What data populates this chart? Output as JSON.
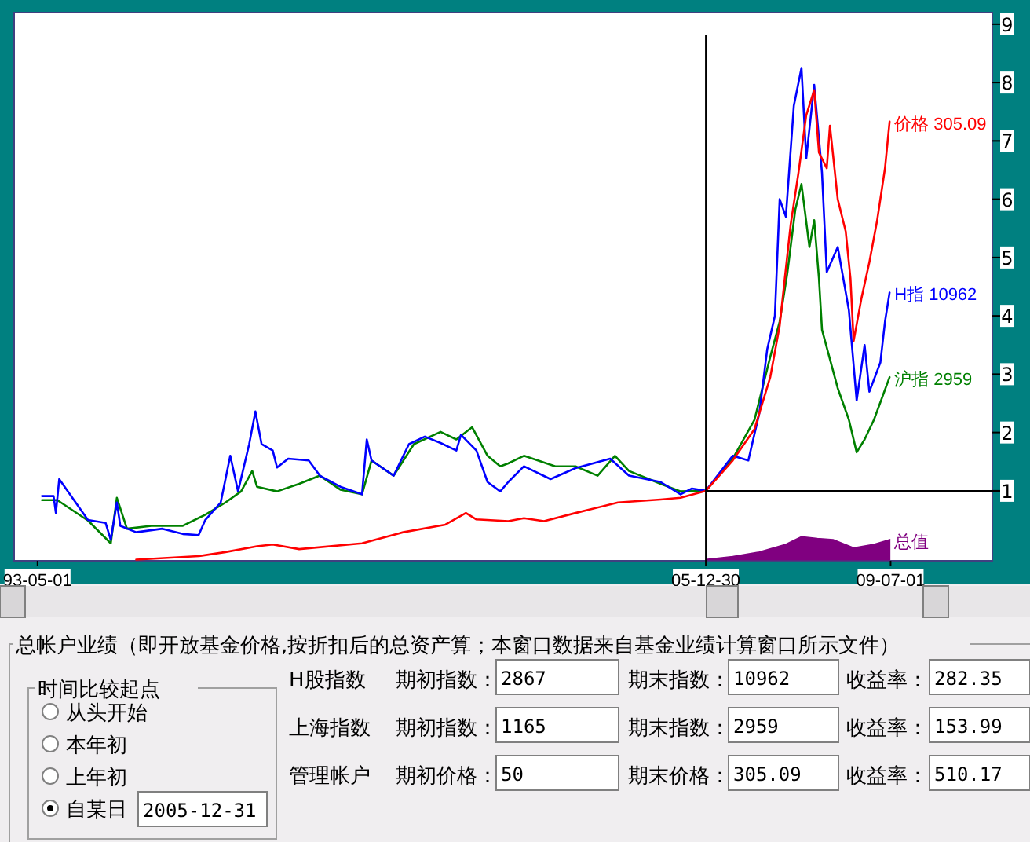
{
  "chart_data": [
    {
      "type": "line",
      "xlim": [
        "1992-11-20",
        "2011-06-05"
      ],
      "ylim": [
        -0.2,
        9.2
      ],
      "xticks": [
        {
          "value": "1993-05-01",
          "label": "93-05-01"
        },
        {
          "value": "2005-12-30",
          "label": "05-12-30"
        },
        {
          "value": "2009-07-01",
          "label": "09-07-01"
        }
      ],
      "yticks": [
        1,
        2,
        3,
        4,
        5,
        6,
        7,
        8,
        9
      ],
      "grid": false,
      "marker": "none",
      "line_style": "solid",
      "ref_lines": [
        {
          "axis": "x",
          "value": "2005-12-30",
          "label": null,
          "color": "#000000"
        },
        {
          "axis": "y",
          "value": 1,
          "label": null,
          "color": "#000000"
        }
      ],
      "series": [
        {
          "type": "area",
          "color": "#800080",
          "x": [
            "2005-12-30",
            "2006-07-04",
            "2007-01-04",
            "2007-07-07",
            "2007-10-23",
            "2008-02-10",
            "2008-05-29",
            "2008-10-18",
            "2009-03-08",
            "2009-06-24",
            "2009-06-24"
          ],
          "values": [
            -0.18,
            -0.13,
            -0.05,
            0.08,
            0.21,
            0.18,
            0.16,
            0.02,
            0.08,
            0.16,
            -0.18
          ]
        },
        {
          "type": "line",
          "color": "#008000",
          "x": [
            "1993-06-01",
            "1993-09-15",
            "1994-04-15",
            "1994-09-20",
            "1994-11-01",
            "1995-01-10",
            "1995-06-28",
            "1996-02-01",
            "1996-07-05",
            "1996-11-22",
            "1997-03-10",
            "1997-05-26",
            "1997-06-28",
            "1997-11-14",
            "1998-04-16",
            "1998-09-06",
            "1999-01-26",
            "1999-06-25",
            "1999-08-30",
            "2000-01-30",
            "2000-06-18",
            "2000-12-20",
            "2001-04-08",
            "2001-07-26",
            "2001-11-10",
            "2002-02-06",
            "2002-04-02",
            "2002-07-20",
            "2003-02-22",
            "2003-07-12",
            "2003-12-12",
            "2004-04-10",
            "2004-07-16",
            "2005-02-20",
            "2005-07-08",
            "2005-12-30",
            "2006-07-04",
            "2006-12-02",
            "2007-03-21",
            "2007-05-25",
            "2007-07-18",
            "2007-09-10",
            "2007-10-23",
            "2007-12-17",
            "2008-01-19",
            "2008-02-21",
            "2008-03-13",
            "2008-06-30",
            "2008-09-15",
            "2008-11-08",
            "2009-01-02",
            "2009-03-08",
            "2009-06-24"
          ],
          "values": [
            0.84,
            0.84,
            0.49,
            0.1,
            0.88,
            0.35,
            0.4,
            0.4,
            0.59,
            0.8,
            0.99,
            1.34,
            1.07,
            0.99,
            1.12,
            1.26,
            1.02,
            0.94,
            1.52,
            1.26,
            1.8,
            2.01,
            1.88,
            2.09,
            1.6,
            1.42,
            1.47,
            1.6,
            1.42,
            1.42,
            1.26,
            1.6,
            1.34,
            1.12,
            0.99,
            1.0,
            1.55,
            2.22,
            3.3,
            3.9,
            4.75,
            5.82,
            6.26,
            5.18,
            5.64,
            4.64,
            3.76,
            2.76,
            2.22,
            1.66,
            1.88,
            2.22,
            2.95
          ]
        },
        {
          "type": "line",
          "color": "#0000ff",
          "x": [
            "1993-06-01",
            "1993-08-20",
            "1993-09-05",
            "1993-09-28",
            "1994-04-15",
            "1994-08-15",
            "1994-09-20",
            "1994-11-01",
            "1994-11-25",
            "1995-03-15",
            "1995-09-12",
            "1996-02-01",
            "1996-05-20",
            "1996-07-05",
            "1996-10-20",
            "1996-12-25",
            "1997-02-17",
            "1997-05-05",
            "1997-06-17",
            "1997-07-30",
            "1997-10-15",
            "1997-11-14",
            "1998-01-30",
            "1998-06-21",
            "1998-09-06",
            "1999-01-26",
            "1999-06-25",
            "1999-07-28",
            "1999-08-30",
            "2000-01-30",
            "2000-05-15",
            "2000-09-02",
            "2000-12-20",
            "2001-04-08",
            "2001-05-10",
            "2001-08-25",
            "2001-11-10",
            "2002-02-06",
            "2002-04-02",
            "2002-07-20",
            "2003-01-20",
            "2003-07-12",
            "2004-03-08",
            "2004-07-16",
            "2005-02-20",
            "2005-07-08",
            "2005-09-25",
            "2005-12-30",
            "2006-07-04",
            "2006-10-20",
            "2007-01-04",
            "2007-02-28",
            "2007-04-22",
            "2007-05-25",
            "2007-07-07",
            "2007-08-31",
            "2007-10-23",
            "2007-11-25",
            "2008-01-19",
            "2008-03-13",
            "2008-04-15",
            "2008-06-30",
            "2008-09-15",
            "2008-11-08",
            "2009-01-02",
            "2009-02-04",
            "2009-04-21",
            "2009-05-23",
            "2009-06-24"
          ],
          "values": [
            0.91,
            0.91,
            0.62,
            1.2,
            0.5,
            0.45,
            0.16,
            0.8,
            0.4,
            0.29,
            0.35,
            0.26,
            0.24,
            0.5,
            0.8,
            1.6,
            0.99,
            1.8,
            2.36,
            1.8,
            1.69,
            1.4,
            1.55,
            1.52,
            1.26,
            1.07,
            0.94,
            1.88,
            1.52,
            1.26,
            1.8,
            1.93,
            1.82,
            1.69,
            1.96,
            1.69,
            1.15,
            0.99,
            1.15,
            1.42,
            1.2,
            1.39,
            1.55,
            1.26,
            1.15,
            0.94,
            1.04,
            1.0,
            1.6,
            1.52,
            2.33,
            3.43,
            4.0,
            6.0,
            5.7,
            7.6,
            8.25,
            6.7,
            7.96,
            6.45,
            4.75,
            5.18,
            4.1,
            2.55,
            3.5,
            2.7,
            3.2,
            3.9,
            4.4
          ]
        },
        {
          "type": "line",
          "color": "#ff0000",
          "x": [
            "1995-03-15",
            "1996-05-20",
            "1996-11-22",
            "1997-06-28",
            "1997-10-15",
            "1998-04-16",
            "1999-06-25",
            "2000-04-05",
            "2001-01-22",
            "2001-06-13",
            "2001-08-25",
            "2002-04-02",
            "2002-07-20",
            "2002-12-06",
            "2003-07-12",
            "2004-05-01",
            "2005-02-20",
            "2005-07-08",
            "2005-12-30",
            "2006-07-04",
            "2006-12-02",
            "2007-03-21",
            "2007-05-25",
            "2007-08-09",
            "2007-10-02",
            "2007-11-25",
            "2008-01-19",
            "2008-02-21",
            "2008-04-15",
            "2008-05-07",
            "2008-06-30",
            "2008-08-24",
            "2008-09-26",
            "2008-10-18",
            "2008-12-11",
            "2009-02-04",
            "2009-03-30",
            "2009-05-23",
            "2009-06-24"
          ],
          "values": [
            -0.18,
            -0.12,
            -0.05,
            0.05,
            0.08,
            0.0,
            0.1,
            0.29,
            0.42,
            0.62,
            0.51,
            0.48,
            0.53,
            0.48,
            0.62,
            0.8,
            0.85,
            0.88,
            1.0,
            1.52,
            2.06,
            2.95,
            3.83,
            5.56,
            6.45,
            7.44,
            7.87,
            6.8,
            6.53,
            7.26,
            6.0,
            5.45,
            4.64,
            3.57,
            4.3,
            4.92,
            5.64,
            6.53,
            7.33
          ]
        }
      ],
      "annotations": [
        {
          "text": "价格 305.09",
          "x": "2009-06-24",
          "y": 7.33
        },
        {
          "text": "H指 10962",
          "x": "2009-06-24",
          "y": 4.4
        },
        {
          "text": "沪指 2959",
          "x": "2009-06-24",
          "y": 2.95
        },
        {
          "text": "总值",
          "x": "2009-06-24",
          "y": 0.16
        }
      ]
    },
    {
      "type": "other",
      "title": "总帐户业绩（即开放基金价格,按折扣后的总资产算；本窗口数据来自基金业绩计算窗口所示文件）",
      "annotations": [
        "时间比较起点",
        "从头开始",
        "本年初",
        "上年初",
        "自某日",
        "2005-12-31",
        "H股指数",
        "期初指数：",
        "2867",
        "期末指数：",
        "10962",
        "收益率：",
        "282.35",
        "上海指数",
        "期初指数：",
        "1165",
        "期末指数：",
        "2959",
        "收益率：",
        "153.99",
        "管理帐户",
        "期初价格：",
        "50",
        "期末价格：",
        "305.09",
        "收益率：",
        "510.17"
      ]
    }
  ]
}
